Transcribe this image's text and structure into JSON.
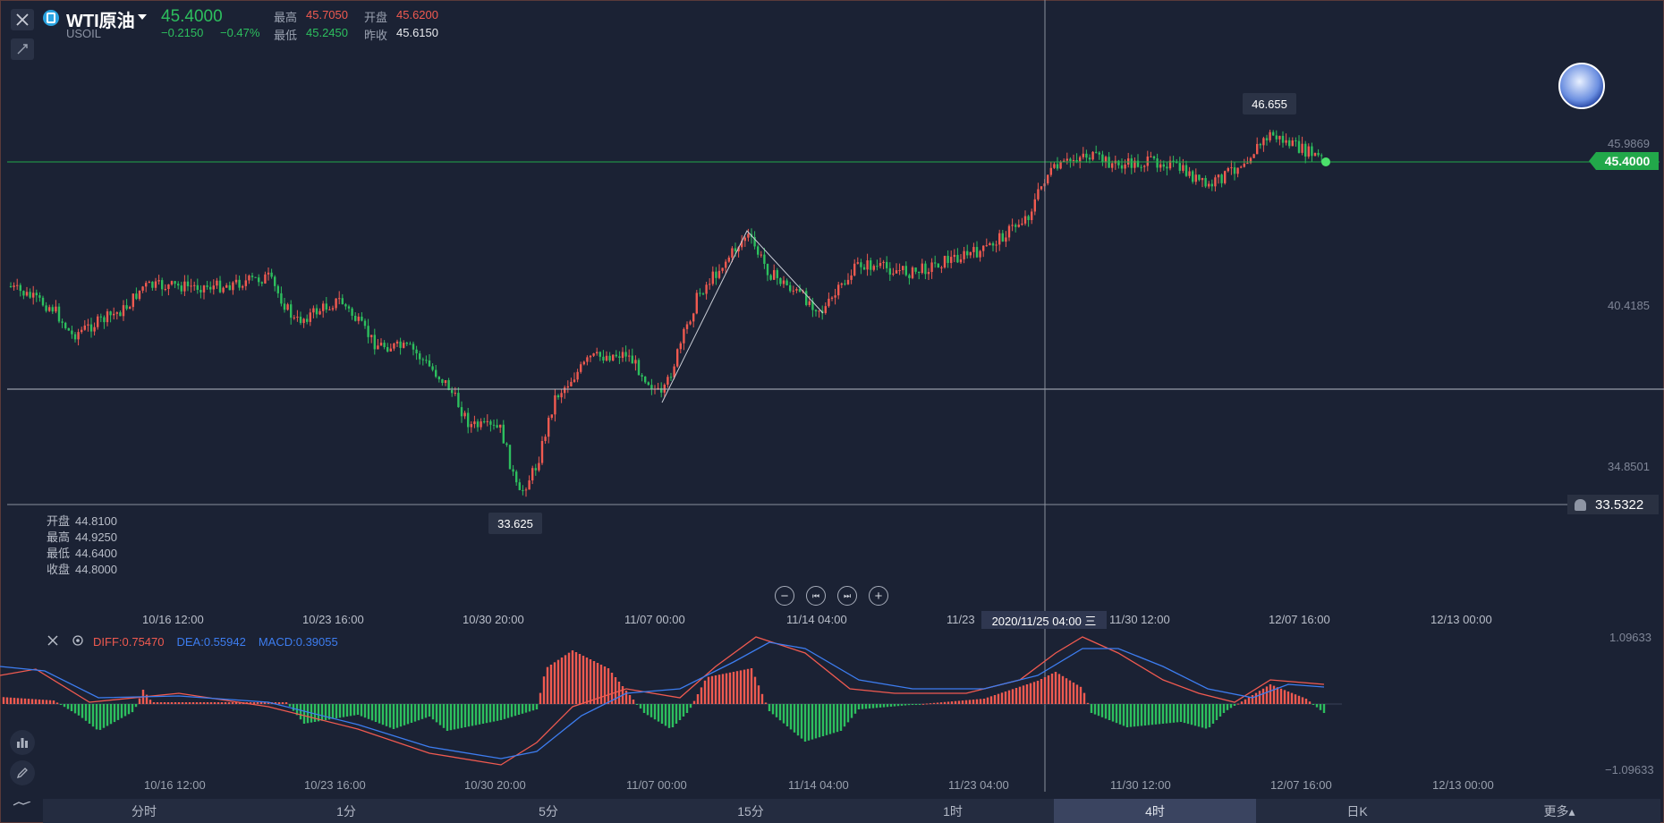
{
  "symbol": {
    "name": "WTI原油",
    "code": "USOIL",
    "price": "45.4000",
    "change": "−0.2150",
    "change_pct": "−0.47%"
  },
  "quote": {
    "high_label": "最高",
    "high": "45.7050",
    "open_label": "开盘",
    "open": "45.6200",
    "low_label": "最低",
    "low": "45.2450",
    "prev_close_label": "昨收",
    "prev_close": "45.6150"
  },
  "ohlc_panel": [
    {
      "label": "开盘",
      "value": "44.8100"
    },
    {
      "label": "最高",
      "value": "44.9250"
    },
    {
      "label": "最低",
      "value": "44.6400"
    },
    {
      "label": "收盘",
      "value": "44.8000"
    }
  ],
  "price_axis": [
    "45.9869",
    "40.4185",
    "34.8501"
  ],
  "current_price_tag": "45.4000",
  "alert_price_tag": "33.5322",
  "high_callout": "46.655",
  "low_callout": "33.625",
  "x_axis": [
    "10/16 12:00",
    "10/23 16:00",
    "10/30 20:00",
    "11/07 00:00",
    "11/14 04:00",
    "11/23",
    "11/30 12:00",
    "12/07 16:00",
    "12/13 00:00"
  ],
  "crosshair_time": "2020/11/25 04:00 三",
  "macd": {
    "diff_label": "DIFF:0.75470",
    "dea_label": "DEA:0.55942",
    "macd_label": "MACD:0.39055",
    "axis_top": "1.09633",
    "axis_bottom": "−1.09633",
    "colors": {
      "diff": "#f05a50",
      "dea": "#3d7df0",
      "macd": "#3d7df0"
    }
  },
  "macd_x_axis": [
    "10/16 12:00",
    "10/23 16:00",
    "10/30 20:00",
    "11/07 00:00",
    "11/14 04:00",
    "11/23 04:00",
    "11/30 12:00",
    "12/07 16:00",
    "12/13 00:00"
  ],
  "tabs": [
    {
      "label": "分时",
      "active": false
    },
    {
      "label": "1分",
      "active": false
    },
    {
      "label": "5分",
      "active": false
    },
    {
      "label": "15分",
      "active": false
    },
    {
      "label": "1时",
      "active": false
    },
    {
      "label": "4时",
      "active": true
    },
    {
      "label": "日K",
      "active": false
    },
    {
      "label": "更多▴",
      "active": false
    }
  ],
  "colors": {
    "up": "#f05a50",
    "down": "#2dbf5e",
    "background": "#1b2234"
  },
  "icons": [
    "close-icon",
    "draw-tool-icon",
    "symbol-icon",
    "zoom-out-icon",
    "step-back-icon",
    "step-forward-icon",
    "zoom-in-icon",
    "settings-icon",
    "indicator-icon",
    "pencil-icon",
    "chart-type-icon",
    "bell-icon"
  ]
}
